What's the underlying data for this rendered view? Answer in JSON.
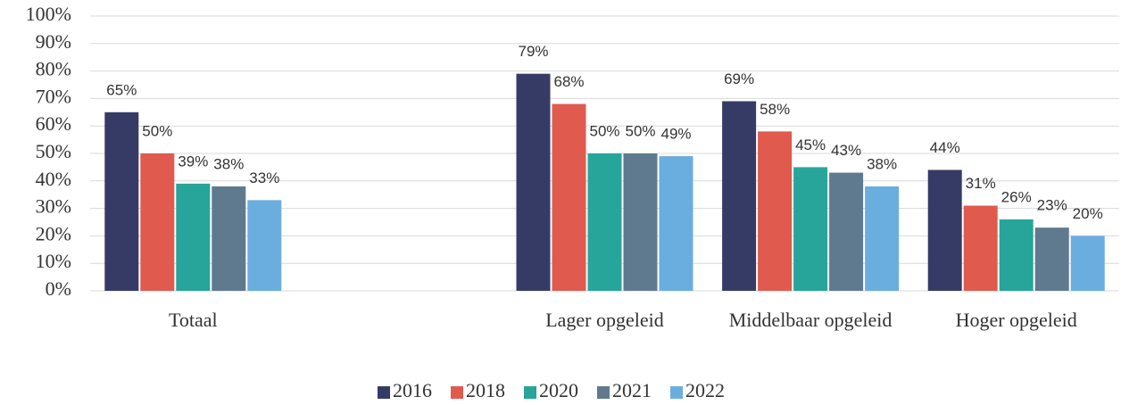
{
  "chart_data": {
    "type": "bar",
    "categories": [
      "Totaal",
      null,
      "Lager opgeleid",
      "Middelbaar opgeleid",
      "Hoger opgeleid"
    ],
    "series": [
      {
        "name": "2016",
        "color": "#363b66",
        "values": [
          65,
          null,
          79,
          69,
          44
        ],
        "value_labels": [
          "65%",
          null,
          "79%",
          "69%",
          "44%"
        ]
      },
      {
        "name": "2018",
        "color": "#e05a4e",
        "values": [
          50,
          null,
          68,
          58,
          31
        ],
        "value_labels": [
          "50%",
          null,
          "68%",
          "58%",
          "31%"
        ]
      },
      {
        "name": "2020",
        "color": "#27a59a",
        "values": [
          39,
          null,
          50,
          45,
          26
        ],
        "value_labels": [
          "39%",
          null,
          "50%",
          "45%",
          "26%"
        ]
      },
      {
        "name": "2021",
        "color": "#5f7a8e",
        "values": [
          38,
          null,
          50,
          43,
          23
        ],
        "value_labels": [
          "38%",
          null,
          "50%",
          "43%",
          "23%"
        ]
      },
      {
        "name": "2022",
        "color": "#6aaee0",
        "values": [
          33,
          null,
          49,
          38,
          20
        ],
        "value_labels": [
          "33%",
          null,
          "49%",
          "38%",
          "20%"
        ]
      }
    ],
    "ylim": [
      0,
      100
    ],
    "yticks": [
      {
        "value": 0,
        "label": "0%"
      },
      {
        "value": 10,
        "label": "10%"
      },
      {
        "value": 20,
        "label": "20%"
      },
      {
        "value": 30,
        "label": "30%"
      },
      {
        "value": 40,
        "label": "40%"
      },
      {
        "value": 50,
        "label": "50%"
      },
      {
        "value": 60,
        "label": "60%"
      },
      {
        "value": 70,
        "label": "70%"
      },
      {
        "value": 80,
        "label": "80%"
      },
      {
        "value": 90,
        "label": "90%"
      },
      {
        "value": 100,
        "label": "100%"
      }
    ],
    "grid": true,
    "legend": "bottom"
  }
}
